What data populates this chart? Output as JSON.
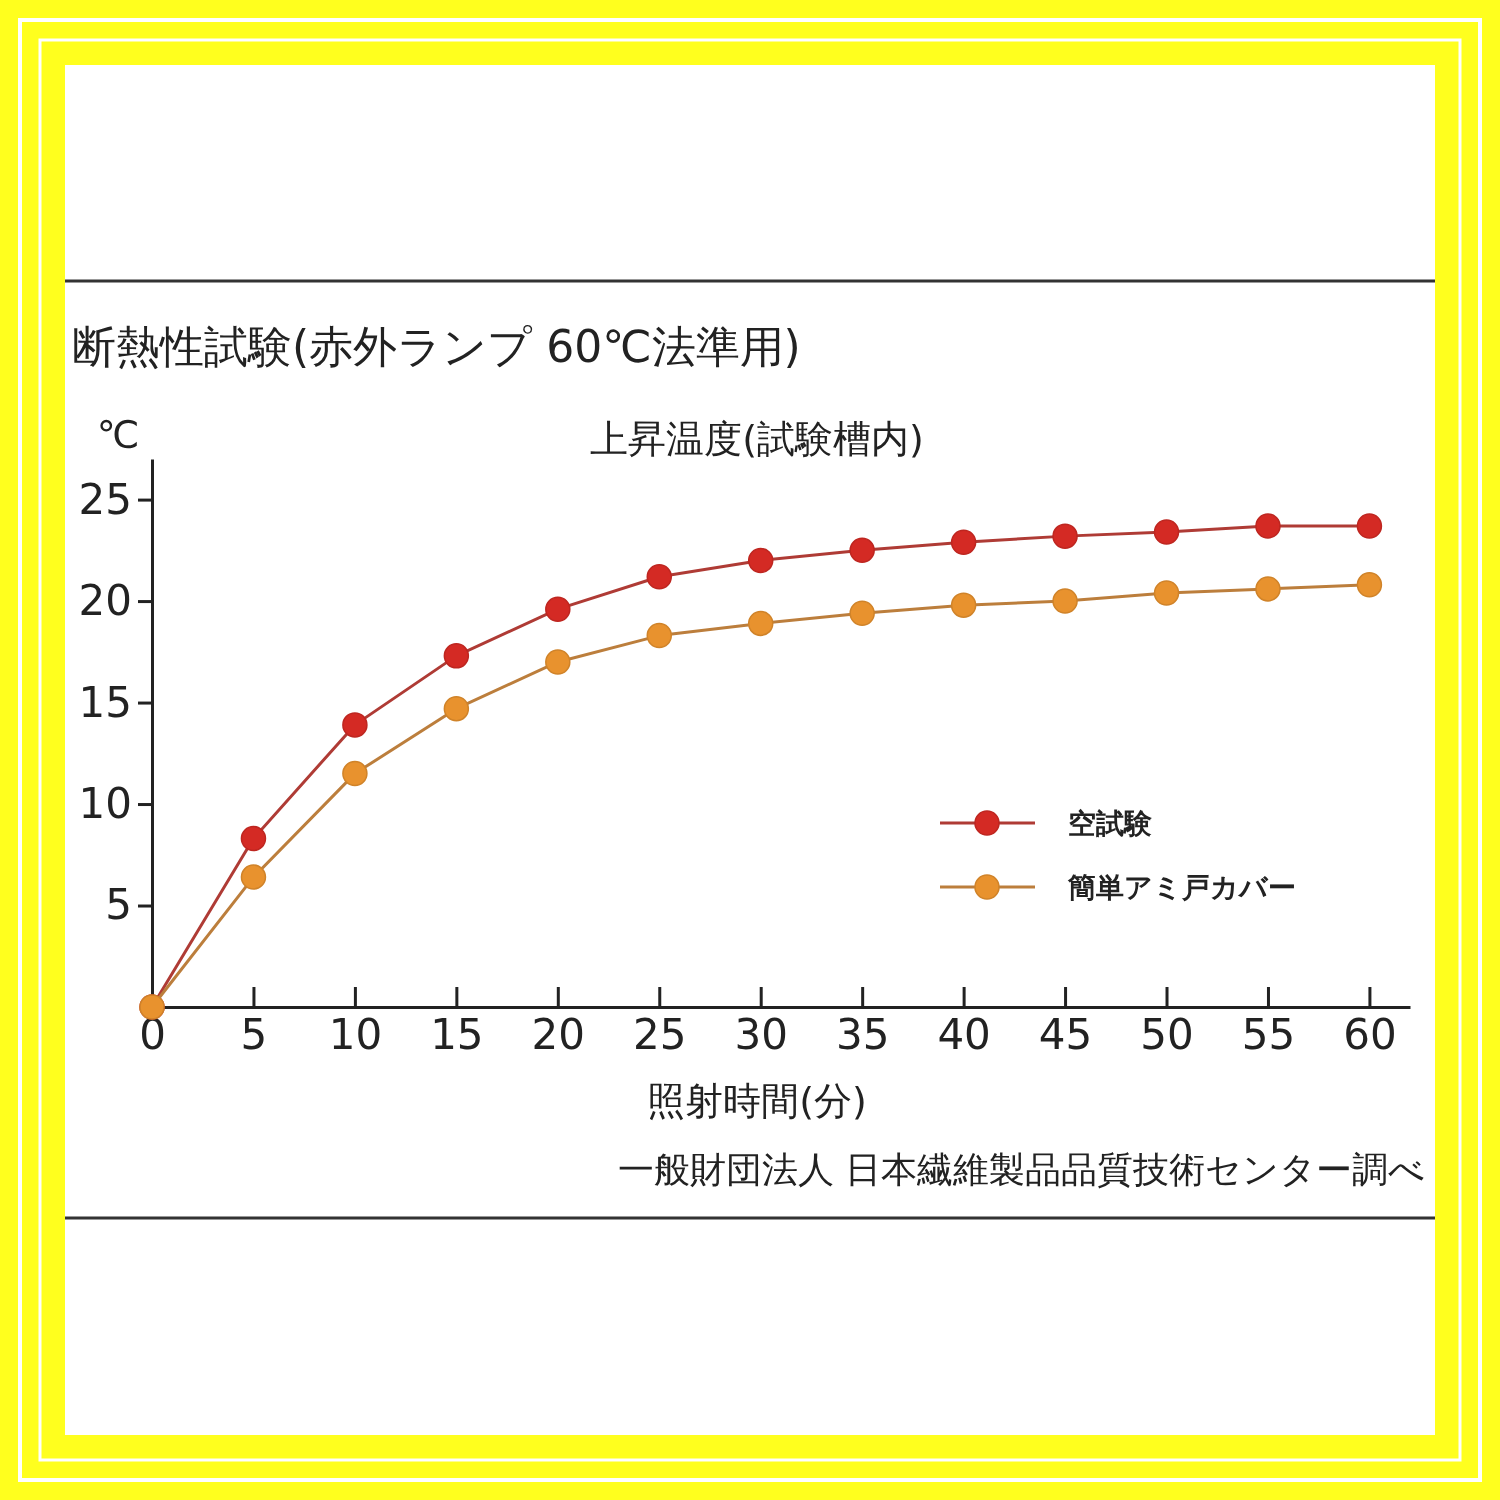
{
  "chart_data": {
    "type": "line",
    "title": "断熱性試験(赤外ランプ 60℃法準用)",
    "subtitle": "上昇温度(試験槽内)",
    "xlabel": "照射時間(分)",
    "ylabel": "℃",
    "annotations": [
      "一般財団法人 日本繊維製品品質技術センター調べ"
    ],
    "x": [
      0,
      5,
      10,
      15,
      20,
      25,
      30,
      35,
      40,
      45,
      50,
      55,
      60
    ],
    "series": [
      {
        "name": "空試験",
        "color": "#d42a24",
        "values": [
          0,
          8.3,
          13.9,
          17.3,
          19.6,
          21.2,
          22.0,
          22.5,
          22.9,
          23.2,
          23.4,
          23.7,
          23.7
        ]
      },
      {
        "name": "簡単アミ戸カバー",
        "color": "#e8922e",
        "values": [
          0,
          6.4,
          11.5,
          14.7,
          17.0,
          18.3,
          18.9,
          19.4,
          19.8,
          20.0,
          20.4,
          20.6,
          20.8
        ]
      }
    ],
    "xlim": [
      0,
      62
    ],
    "ylim": [
      0,
      27
    ],
    "xticks": [
      0,
      5,
      10,
      15,
      20,
      25,
      30,
      35,
      40,
      45,
      50,
      55,
      60
    ],
    "yticks": [
      5,
      10,
      15,
      20,
      25
    ],
    "legend": "right",
    "marker": "circle",
    "line_style": "solid"
  }
}
